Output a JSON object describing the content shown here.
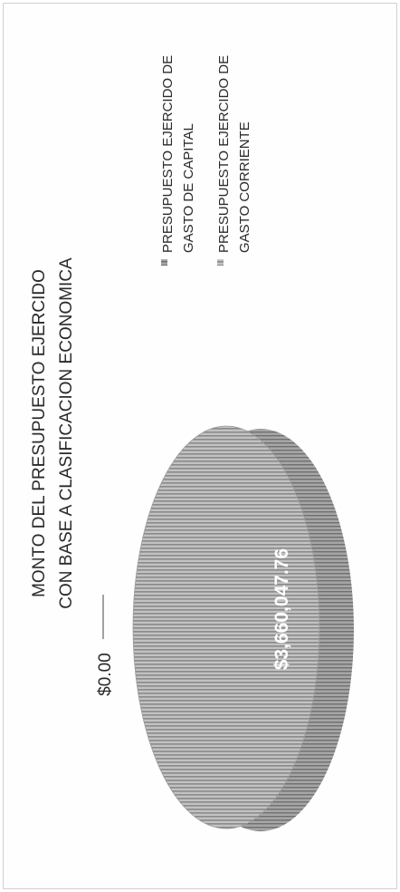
{
  "chart_data": {
    "type": "pie",
    "title_line1": "MONTO DEL PRESUPUESTO EJERCIDO",
    "title_line2": "CON BASE A CLASIFICACION ECONOMICA",
    "slices": [
      {
        "label_line1": "PRESUPUESTO EJERCIDO DE",
        "label_line2": "GASTO DE CAPITAL",
        "value": 0.0,
        "value_label": "$0.00"
      },
      {
        "label_line1": "PRESUPUESTO EJERCIDO DE",
        "label_line2": "GASTO CORRIENTE",
        "value": 3660047.76,
        "value_label": "$3,660,047.76"
      }
    ],
    "legend_position": "right",
    "orientation": "rotated-90-ccw"
  },
  "colors": {
    "slice_main_top": "#b9b9b9",
    "slice_main_side": "#8f8f8f",
    "capital_swatch": "#9b9b9b",
    "corriente_swatch": "#c4c4c4",
    "text": "#2a2a2a",
    "data_label": "#ffffff"
  }
}
